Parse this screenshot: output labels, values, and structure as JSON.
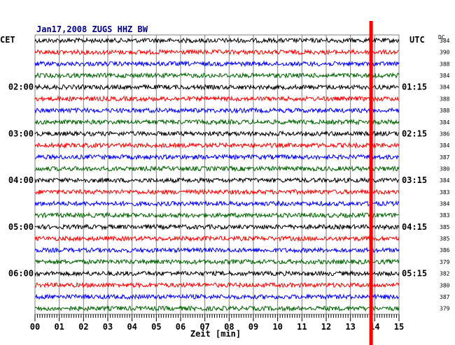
{
  "chart_data": {
    "type": "line",
    "title": "Jan17,2008   ZUGS HHZ BW",
    "left_axis_label": "CET",
    "right_axis_label": "UTC",
    "dc_header": "DC",
    "xlabel": "Zeit [min]",
    "xlim": [
      0,
      15
    ],
    "x_ticks": [
      "00",
      "01",
      "02",
      "03",
      "04",
      "05",
      "06",
      "07",
      "08",
      "09",
      "10",
      "11",
      "12",
      "13",
      "14",
      "15"
    ],
    "trace_colors": [
      "#000000",
      "#ff0000",
      "#0000ff",
      "#006400"
    ],
    "event_marker_minute": 13.85,
    "event_marker_color": "#ff0000",
    "left_hour_labels": [
      {
        "row": 4,
        "text": "02:00"
      },
      {
        "row": 8,
        "text": "03:00"
      },
      {
        "row": 12,
        "text": "04:00"
      },
      {
        "row": 16,
        "text": "05:00"
      },
      {
        "row": 20,
        "text": "06:00"
      }
    ],
    "right_hour_labels": [
      {
        "row": 4,
        "text": "01:15"
      },
      {
        "row": 8,
        "text": "02:15"
      },
      {
        "row": 12,
        "text": "03:15"
      },
      {
        "row": 16,
        "text": "04:15"
      },
      {
        "row": 20,
        "text": "05:15"
      }
    ],
    "dc_offsets": [
      "384",
      "390",
      "388",
      "384",
      "384",
      "388",
      "388",
      "384",
      "386",
      "384",
      "387",
      "380",
      "384",
      "383",
      "384",
      "383",
      "385",
      "385",
      "386",
      "379",
      "382",
      "380",
      "387",
      "379"
    ]
  }
}
